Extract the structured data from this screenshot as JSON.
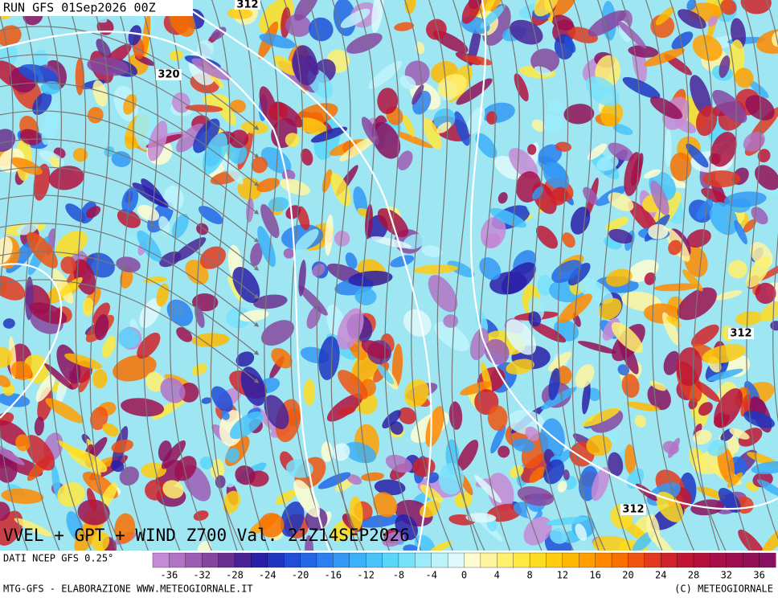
{
  "run_label": "RUN GFS 01Sep2026 00Z",
  "contour_labels": [
    "312",
    "320",
    "312",
    "312"
  ],
  "map_title": "VVEL + GPT + WIND Z700 Val. 21Z14SEP2026",
  "source": "DATI NCEP GFS 0.25°",
  "colorbar": {
    "ticks": [
      -36,
      -32,
      -28,
      -24,
      -20,
      -16,
      -12,
      -8,
      -4,
      0,
      4,
      8,
      12,
      16,
      20,
      24,
      28,
      32,
      36
    ],
    "colors": [
      "#c58ad6",
      "#b273c6",
      "#9c5cb4",
      "#8646a0",
      "#6a2f8e",
      "#4a2296",
      "#2a1fa8",
      "#1f35c0",
      "#1f4fd6",
      "#2366e6",
      "#2a80f0",
      "#3399f5",
      "#3cb0f8",
      "#48c4fa",
      "#5ad6fb",
      "#78e2fb",
      "#9aecfb",
      "#bdf3fb",
      "#def9fc",
      "#fffbd0",
      "#fff4a0",
      "#fff070",
      "#ffe840",
      "#ffdc20",
      "#ffcc10",
      "#ffb800",
      "#ffa000",
      "#ff8800",
      "#f87000",
      "#ef5510",
      "#e23a1e",
      "#d0222a",
      "#c01534",
      "#b3103e",
      "#a80f48",
      "#9d0f50",
      "#930f57",
      "#891060"
    ]
  },
  "footer_left": "MTG-GFS - ELABORAZIONE WWW.METEOGIORNALE.IT",
  "footer_right": "(C) METEOGIORNALE"
}
